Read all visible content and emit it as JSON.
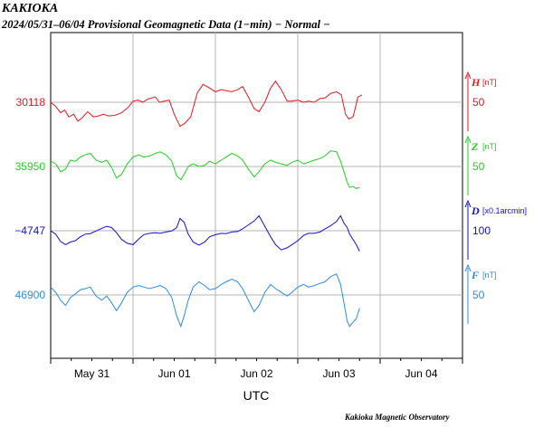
{
  "header": {
    "station": "KAKIOKA",
    "subtitle": "2024/05/31–06/04  Provisional Geomagnetic Data (1−min)  − Normal −"
  },
  "footer": {
    "credit": "Kakioka Magnetic Observatory"
  },
  "chart_data": {
    "type": "line",
    "xlabel": "UTC",
    "x_tick_labels": [
      "May 31",
      "Jun 01",
      "Jun 02",
      "Jun 03",
      "Jun 04"
    ],
    "x_range_days": [
      0,
      5
    ],
    "x_unit": "days from 2024/05/31 00:00 UTC",
    "grid": true,
    "series": [
      {
        "name": "H",
        "unit": "[nT]",
        "color": "#e8171c",
        "left_label": "30118",
        "scale_label": "50",
        "scale_value": 50,
        "baseline": 30118,
        "x": [
          0,
          0.06,
          0.12,
          0.17,
          0.22,
          0.28,
          0.33,
          0.38,
          0.45,
          0.52,
          0.58,
          0.64,
          0.7,
          0.78,
          0.86,
          0.94,
          1.0,
          1.06,
          1.12,
          1.18,
          1.22,
          1.27,
          1.32,
          1.38,
          1.44,
          1.5,
          1.57,
          1.63,
          1.7,
          1.78,
          1.85,
          1.92,
          2.0,
          2.07,
          2.13,
          2.2,
          2.27,
          2.33,
          2.4,
          2.47,
          2.53,
          2.6,
          2.67,
          2.73,
          2.8,
          2.87,
          2.93,
          3.0,
          3.07,
          3.13,
          3.2,
          3.27,
          3.33,
          3.4,
          3.47,
          3.53,
          3.58,
          3.62,
          3.67,
          3.7,
          3.73,
          3.78
        ],
        "y": [
          30118,
          30110,
          30098,
          30103,
          30090,
          30095,
          30082,
          30088,
          30100,
          30090,
          30092,
          30095,
          30092,
          30093,
          30098,
          30108,
          30120,
          30122,
          30118,
          30124,
          30126,
          30128,
          30118,
          30120,
          30122,
          30095,
          30072,
          30078,
          30090,
          30136,
          30152,
          30146,
          30138,
          30142,
          30140,
          30138,
          30142,
          30148,
          30128,
          30106,
          30100,
          30118,
          30145,
          30158,
          30142,
          30120,
          30120,
          30122,
          30118,
          30120,
          30118,
          30125,
          30126,
          30135,
          30138,
          30132,
          30095,
          30086,
          30090,
          30108,
          30128,
          30132
        ]
      },
      {
        "name": "Z",
        "unit": "[nT]",
        "color": "#1fd01f",
        "left_label": "35950",
        "scale_label": "50",
        "scale_value": 50,
        "baseline": 35950,
        "x": [
          0,
          0.06,
          0.12,
          0.18,
          0.24,
          0.3,
          0.36,
          0.42,
          0.48,
          0.55,
          0.62,
          0.68,
          0.74,
          0.8,
          0.86,
          0.93,
          1.0,
          1.07,
          1.13,
          1.2,
          1.27,
          1.33,
          1.4,
          1.47,
          1.53,
          1.58,
          1.62,
          1.67,
          1.73,
          1.8,
          1.87,
          1.93,
          2.0,
          2.07,
          2.13,
          2.2,
          2.27,
          2.33,
          2.4,
          2.47,
          2.53,
          2.6,
          2.67,
          2.73,
          2.8,
          2.87,
          2.93,
          3.0,
          3.07,
          3.13,
          3.2,
          3.27,
          3.33,
          3.4,
          3.47,
          3.52,
          3.56,
          3.6,
          3.63,
          3.67,
          3.71,
          3.75
        ],
        "y": [
          35960,
          35955,
          35940,
          35945,
          35962,
          35960,
          35968,
          35972,
          35975,
          35962,
          35958,
          35962,
          35948,
          35928,
          35935,
          35955,
          35968,
          35972,
          35968,
          35970,
          35975,
          35978,
          35972,
          35960,
          35932,
          35925,
          35935,
          35950,
          35955,
          35950,
          35952,
          35960,
          35955,
          35962,
          35968,
          35975,
          35970,
          35962,
          35945,
          35930,
          35940,
          35955,
          35962,
          35958,
          35955,
          35952,
          35958,
          35962,
          35955,
          35958,
          35962,
          35965,
          35970,
          35980,
          35978,
          35960,
          35940,
          35920,
          35910,
          35912,
          35908,
          35910
        ]
      },
      {
        "name": "D",
        "unit": "[x0.1arcmin]",
        "color": "#1212c8",
        "left_label": "−4747",
        "scale_label": "100",
        "scale_value": 100,
        "baseline": -4747,
        "x": [
          0,
          0.06,
          0.12,
          0.18,
          0.24,
          0.3,
          0.36,
          0.42,
          0.48,
          0.55,
          0.62,
          0.68,
          0.74,
          0.8,
          0.86,
          0.93,
          1.0,
          1.07,
          1.13,
          1.2,
          1.27,
          1.33,
          1.4,
          1.47,
          1.53,
          1.57,
          1.62,
          1.67,
          1.73,
          1.8,
          1.87,
          1.93,
          2.0,
          2.07,
          2.13,
          2.2,
          2.27,
          2.33,
          2.4,
          2.47,
          2.53,
          2.6,
          2.67,
          2.73,
          2.8,
          2.87,
          2.93,
          3.0,
          3.07,
          3.13,
          3.2,
          3.27,
          3.33,
          3.4,
          3.47,
          3.52,
          3.56,
          3.6,
          3.63,
          3.67,
          3.71,
          3.75
        ],
        "y": [
          -4747,
          -4760,
          -4788,
          -4800,
          -4790,
          -4785,
          -4770,
          -4760,
          -4758,
          -4748,
          -4738,
          -4730,
          -4735,
          -4755,
          -4780,
          -4795,
          -4800,
          -4778,
          -4762,
          -4757,
          -4755,
          -4757,
          -4752,
          -4748,
          -4735,
          -4700,
          -4715,
          -4760,
          -4790,
          -4802,
          -4790,
          -4770,
          -4762,
          -4757,
          -4758,
          -4752,
          -4750,
          -4740,
          -4725,
          -4710,
          -4690,
          -4730,
          -4770,
          -4800,
          -4820,
          -4812,
          -4800,
          -4785,
          -4765,
          -4757,
          -4757,
          -4752,
          -4740,
          -4728,
          -4712,
          -4690,
          -4718,
          -4735,
          -4760,
          -4780,
          -4800,
          -4825
        ]
      },
      {
        "name": "F",
        "unit": "[nT]",
        "color": "#2e8ae8",
        "left_label": "46900",
        "scale_label": "50",
        "scale_value": 50,
        "baseline": 46900,
        "x": [
          0,
          0.06,
          0.12,
          0.18,
          0.24,
          0.3,
          0.36,
          0.42,
          0.48,
          0.55,
          0.62,
          0.68,
          0.74,
          0.8,
          0.86,
          0.93,
          1.0,
          1.07,
          1.13,
          1.2,
          1.27,
          1.33,
          1.4,
          1.47,
          1.53,
          1.58,
          1.62,
          1.67,
          1.73,
          1.8,
          1.87,
          1.93,
          2.0,
          2.07,
          2.13,
          2.2,
          2.27,
          2.33,
          2.4,
          2.47,
          2.53,
          2.6,
          2.67,
          2.73,
          2.8,
          2.87,
          2.93,
          3.0,
          3.07,
          3.13,
          3.2,
          3.27,
          3.33,
          3.4,
          3.47,
          3.52,
          3.56,
          3.6,
          3.63,
          3.67,
          3.71,
          3.75
        ],
        "y": [
          46915,
          46905,
          46890,
          46880,
          46895,
          46902,
          46910,
          46912,
          46915,
          46898,
          46890,
          46898,
          46885,
          46870,
          46885,
          46905,
          46915,
          46918,
          46915,
          46912,
          46915,
          46918,
          46912,
          46895,
          46860,
          46840,
          46860,
          46890,
          46915,
          46925,
          46918,
          46910,
          46912,
          46920,
          46925,
          46930,
          46925,
          46912,
          46890,
          46868,
          46880,
          46905,
          46920,
          46912,
          46905,
          46898,
          46905,
          46915,
          46920,
          46915,
          46918,
          46922,
          46925,
          46935,
          46940,
          46920,
          46885,
          46850,
          46840,
          46848,
          46855,
          46875
        ]
      }
    ]
  }
}
